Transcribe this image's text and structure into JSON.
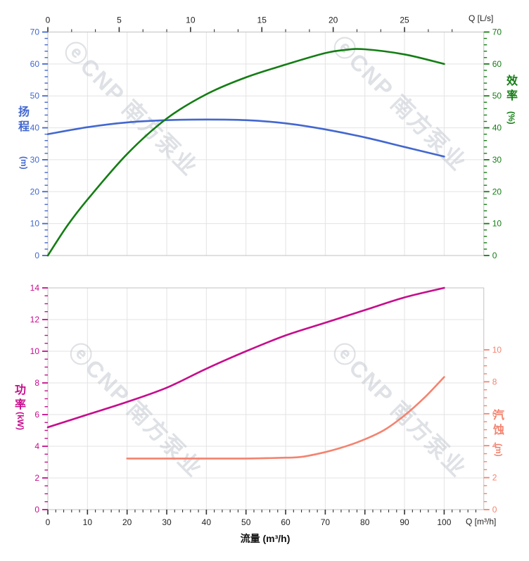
{
  "watermark": {
    "text": "ⓔCNP 南方泵业",
    "color": "#c4c9d0"
  },
  "colors": {
    "head": "#4267cf",
    "efficiency": "#147d14",
    "power": "#c60d8c",
    "npsh": "#f4836f",
    "grid": "#e3e3e3",
    "spine": "#c2c2c2",
    "axis_text": "#222222"
  },
  "labels": {
    "x_top_unit": "Q [L/s]",
    "x_bottom_unit": "Q [m³/h]",
    "x_axis_label": "流量 (m³/h)",
    "head_title": "扬程",
    "head_unit": "(m)",
    "efficiency_title": "效率",
    "efficiency_unit": "(%)",
    "power_title": "功率",
    "power_unit": "(kW)",
    "npsh_title": "汽蚀",
    "npsh_unit": "(m)"
  },
  "chart_data": [
    {
      "type": "line",
      "panel": "top",
      "title": "",
      "x_top_axis": {
        "unit_label": "Q [L/s]",
        "ticks": [
          0,
          5,
          10,
          15,
          20,
          25
        ],
        "minor_step_Ls": 1.6667,
        "minor_max_Ls": 30,
        "Ls_per_m3h": 0.27778
      },
      "left_axis": {
        "name": "扬程",
        "unit": "m",
        "min": 0,
        "max": 70,
        "ticks": [
          0,
          10,
          20,
          30,
          40,
          50,
          60,
          70
        ],
        "minor_step": 2,
        "grid": true
      },
      "right_axis": {
        "name": "效率",
        "unit": "%",
        "min": 0,
        "max": 70,
        "ticks": [
          0,
          10,
          20,
          30,
          40,
          50,
          60,
          70
        ],
        "minor_step": 2
      },
      "series": [
        {
          "name": "head",
          "label": "扬程",
          "axis": "left",
          "color_key": "head",
          "x": [
            0,
            10,
            20,
            30,
            40,
            50,
            60,
            70,
            80,
            90,
            100
          ],
          "values": [
            38,
            40.2,
            41.7,
            42.4,
            42.6,
            42.4,
            41.4,
            39.5,
            37,
            34,
            31
          ]
        },
        {
          "name": "efficiency",
          "label": "效率",
          "axis": "right",
          "color_key": "efficiency",
          "x": [
            0,
            5,
            10,
            20,
            30,
            40,
            50,
            60,
            70,
            75,
            80,
            90,
            100
          ],
          "values": [
            0,
            9.5,
            17.5,
            31.8,
            42.9,
            50.5,
            55.8,
            59.8,
            63.4,
            64.4,
            64.6,
            63,
            60
          ]
        }
      ]
    },
    {
      "type": "line",
      "panel": "bottom",
      "title": "",
      "x_axis": {
        "unit_label": "Q [m³/h]",
        "xlabel": "流量 (m³/h)",
        "min": 0,
        "max": 110,
        "ticks": [
          0,
          10,
          20,
          30,
          40,
          50,
          60,
          70,
          80,
          90,
          100
        ],
        "minor_step": 2,
        "minor_max": 108
      },
      "left_axis": {
        "name": "功率",
        "unit": "kW",
        "min": 0,
        "max": 14,
        "ticks": [
          0,
          2,
          4,
          6,
          8,
          10,
          12,
          14
        ],
        "minor_step": 0.5,
        "grid": true
      },
      "right_axis": {
        "name": "汽蚀",
        "unit": "m",
        "min": 0,
        "max": 10,
        "ticks": [
          0,
          2,
          4,
          6,
          8,
          10
        ],
        "minor_step": 0.5
      },
      "series": [
        {
          "name": "power",
          "label": "功率",
          "axis": "left",
          "color_key": "power",
          "x": [
            0,
            10,
            20,
            30,
            40,
            50,
            60,
            70,
            80,
            90,
            100
          ],
          "values": [
            5.2,
            6.0,
            6.8,
            7.7,
            8.9,
            10.0,
            11.0,
            11.8,
            12.6,
            13.4,
            14.0
          ]
        },
        {
          "name": "npsh",
          "label": "汽蚀",
          "axis": "right",
          "color_key": "npsh",
          "x": [
            20,
            30,
            40,
            50,
            60,
            64,
            70,
            75,
            80,
            85,
            90,
            95,
            100
          ],
          "values": [
            3.2,
            3.2,
            3.2,
            3.2,
            3.25,
            3.3,
            3.6,
            3.95,
            4.4,
            5.0,
            5.9,
            7.0,
            8.3
          ]
        }
      ]
    }
  ]
}
